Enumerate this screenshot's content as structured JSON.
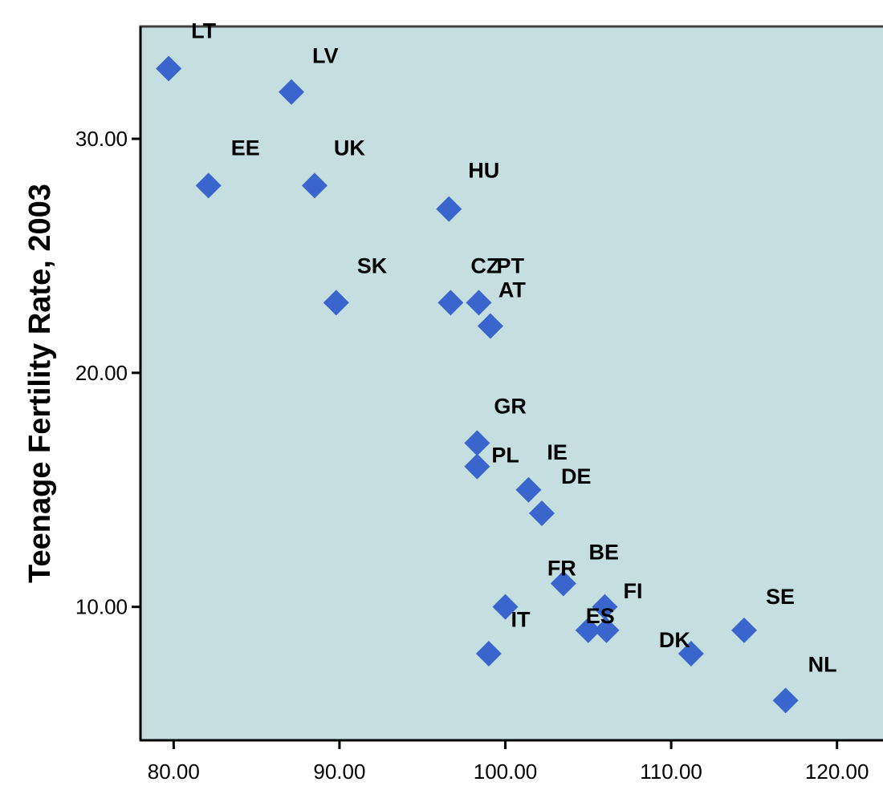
{
  "chart_data": {
    "type": "scatter",
    "title": "",
    "xlabel": "",
    "ylabel": "Teenage Fertility Rate, 2003",
    "xlim": [
      78,
      123.5
    ],
    "ylim": [
      4.3,
      34.8
    ],
    "x_ticks": [
      80,
      90,
      100,
      110,
      120
    ],
    "y_ticks": [
      10,
      20,
      30
    ],
    "x_tick_labels": [
      "80.00",
      "90.00",
      "100.00",
      "110.00",
      "120.00"
    ],
    "y_tick_labels": [
      "10.00",
      "20.00",
      "30.00"
    ],
    "grid": false,
    "legend": "none",
    "colors": {
      "plot_background": "#c5dfe1",
      "marker": "#3a65cc",
      "axis": "#000000",
      "frame": "#404040"
    },
    "points": [
      {
        "label": "LT",
        "x": 79.7,
        "y": 33.0
      },
      {
        "label": "LV",
        "x": 87.1,
        "y": 32.0
      },
      {
        "label": "EE",
        "x": 82.1,
        "y": 28.0
      },
      {
        "label": "UK",
        "x": 88.5,
        "y": 28.0
      },
      {
        "label": "HU",
        "x": 96.6,
        "y": 27.0
      },
      {
        "label": "SK",
        "x": 89.8,
        "y": 23.0
      },
      {
        "label": "CZ",
        "x": 96.7,
        "y": 23.0
      },
      {
        "label": "PT",
        "x": 98.4,
        "y": 23.0
      },
      {
        "label": "AT",
        "x": 99.1,
        "y": 22.0
      },
      {
        "label": "GR",
        "x": 98.3,
        "y": 17.0
      },
      {
        "label": "PL",
        "x": 98.3,
        "y": 16.0
      },
      {
        "label": "IE",
        "x": 101.4,
        "y": 15.0
      },
      {
        "label": "DE",
        "x": 102.2,
        "y": 14.0
      },
      {
        "label": "FR",
        "x": 103.5,
        "y": 11.0
      },
      {
        "label": "BE",
        "x": 106.0,
        "y": 10.0
      },
      {
        "label": "IT",
        "x": 100.0,
        "y": 10.0
      },
      {
        "label": "FI",
        "x": 106.1,
        "y": 9.0
      },
      {
        "label": "ES",
        "x": 105.0,
        "y": 9.0
      },
      {
        "label": "SE",
        "x": 114.4,
        "y": 9.0
      },
      {
        "label": "DK",
        "x": 111.2,
        "y": 8.0
      },
      {
        "label": "",
        "x": 99.0,
        "y": 8.0
      },
      {
        "label": "NL",
        "x": 116.9,
        "y": 6.0
      }
    ]
  }
}
